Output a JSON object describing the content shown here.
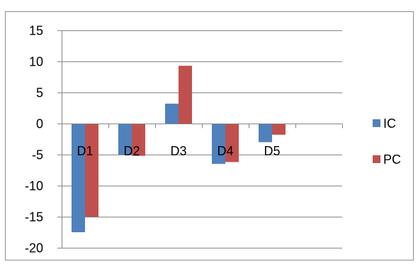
{
  "chart_data": {
    "type": "bar",
    "categories": [
      "D1",
      "D2",
      "D3",
      "D4",
      "D5",
      ""
    ],
    "series": [
      {
        "name": "IC",
        "values": [
          -17.5,
          -5.0,
          3.2,
          -6.5,
          -3.0,
          null
        ],
        "color": "#4F81BD"
      },
      {
        "name": "PC",
        "values": [
          -15.0,
          -5.2,
          9.3,
          -6.2,
          -1.8,
          null
        ],
        "color": "#C0504D"
      }
    ],
    "ylim": [
      -20,
      15
    ],
    "yticks": [
      15,
      10,
      5,
      0,
      -5,
      -10,
      -15,
      -20
    ],
    "grid": true,
    "legend": "right"
  }
}
